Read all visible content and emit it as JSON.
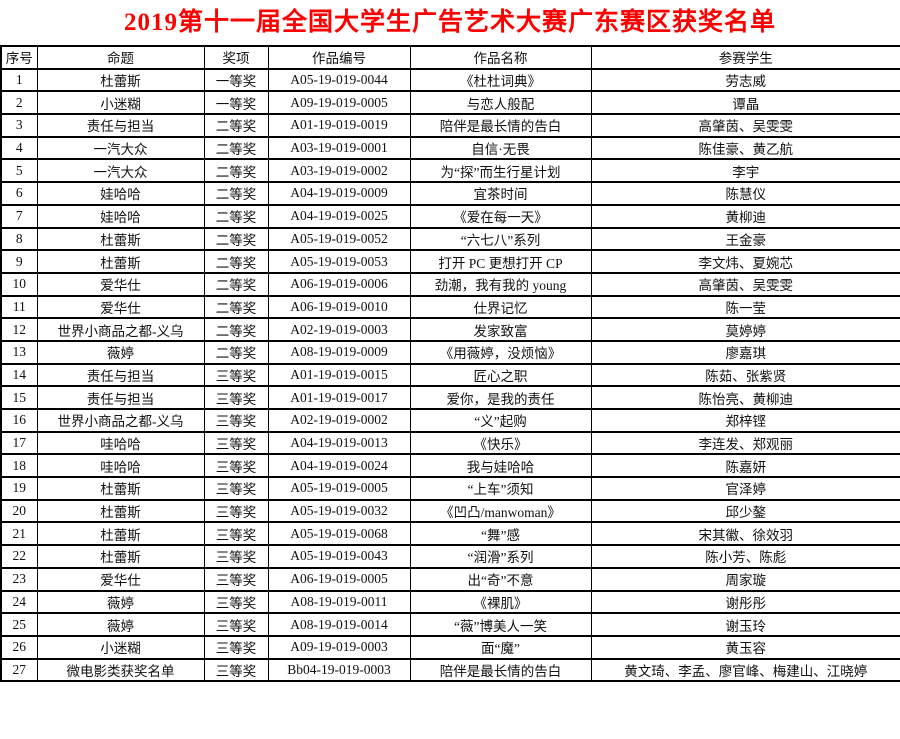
{
  "title": "2019第十一届全国大学生广告艺术大赛广东赛区获奖名单",
  "title_color": "#ff0000",
  "border_color": "#000000",
  "table": {
    "headers": [
      "序号",
      "命题",
      "奖项",
      "作品编号",
      "作品名称",
      "参赛学生"
    ],
    "rows": [
      [
        "1",
        "杜蕾斯",
        "一等奖",
        "A05-19-019-0044",
        "《杜杜词典》",
        "劳志威"
      ],
      [
        "2",
        "小迷糊",
        "一等奖",
        "A09-19-019-0005",
        "与恋人般配",
        "谭晶"
      ],
      [
        "3",
        "责任与担当",
        "二等奖",
        "A01-19-019-0019",
        "陪伴是最长情的告白",
        "高肇茵、吴雯雯"
      ],
      [
        "4",
        "一汽大众",
        "二等奖",
        "A03-19-019-0001",
        "自信·无畏",
        "陈佳豪、黄乙航"
      ],
      [
        "5",
        "一汽大众",
        "二等奖",
        "A03-19-019-0002",
        "为“探”而生行星计划",
        "李宇"
      ],
      [
        "6",
        "娃哈哈",
        "二等奖",
        "A04-19-019-0009",
        "宜茶时间",
        "陈慧仪"
      ],
      [
        "7",
        "娃哈哈",
        "二等奖",
        "A04-19-019-0025",
        "《爱在每一天》",
        "黄柳迪"
      ],
      [
        "8",
        "杜蕾斯",
        "二等奖",
        "A05-19-019-0052",
        "“六七八”系列",
        "王金豪"
      ],
      [
        "9",
        "杜蕾斯",
        "二等奖",
        "A05-19-019-0053",
        "打开 PC 更想打开 CP",
        "李文炜、夏婉芯"
      ],
      [
        "10",
        "爱华仕",
        "二等奖",
        "A06-19-019-0006",
        "劲潮，我有我的 young",
        "高肇茵、吴雯雯"
      ],
      [
        "11",
        "爱华仕",
        "二等奖",
        "A06-19-019-0010",
        "仕界记忆",
        "陈一莹"
      ],
      [
        "12",
        "世界小商品之都-义乌",
        "二等奖",
        "A02-19-019-0003",
        "发家致富",
        "莫婷婷"
      ],
      [
        "13",
        "薇婷",
        "二等奖",
        "A08-19-019-0009",
        "《用薇婷，没烦恼》",
        "廖嘉琪"
      ],
      [
        "14",
        "责任与担当",
        "三等奖",
        "A01-19-019-0015",
        "匠心之职",
        "陈茹、张紫贤"
      ],
      [
        "15",
        "责任与担当",
        "三等奖",
        "A01-19-019-0017",
        "爱你，是我的责任",
        "陈怡亮、黄柳迪"
      ],
      [
        "16",
        "世界小商品之都-义乌",
        "三等奖",
        "A02-19-019-0002",
        "“义”起购",
        "郑梓铿"
      ],
      [
        "17",
        "哇哈哈",
        "三等奖",
        "A04-19-019-0013",
        "《快乐》",
        "李连发、郑观丽"
      ],
      [
        "18",
        "哇哈哈",
        "三等奖",
        "A04-19-019-0024",
        "我与娃哈哈",
        "陈嘉妍"
      ],
      [
        "19",
        "杜蕾斯",
        "三等奖",
        "A05-19-019-0005",
        "“上车”须知",
        "官泽婷"
      ],
      [
        "20",
        "杜蕾斯",
        "三等奖",
        "A05-19-019-0032",
        "《凹凸/manwoman》",
        "邱少鏊"
      ],
      [
        "21",
        "杜蕾斯",
        "三等奖",
        "A05-19-019-0068",
        "“舞”感",
        "宋其徽、徐效羽"
      ],
      [
        "22",
        "杜蕾斯",
        "三等奖",
        "A05-19-019-0043",
        "“润滑”系列",
        "陈小芳、陈彪"
      ],
      [
        "23",
        "爱华仕",
        "三等奖",
        "A06-19-019-0005",
        "出“奇”不意",
        "周家璇"
      ],
      [
        "24",
        "薇婷",
        "三等奖",
        "A08-19-019-0011",
        "《裸肌》",
        "谢彤彤"
      ],
      [
        "25",
        "薇婷",
        "三等奖",
        "A08-19-019-0014",
        "“薇”博美人一笑",
        "谢玉玲"
      ],
      [
        "26",
        "小迷糊",
        "三等奖",
        "A09-19-019-0003",
        "面“魔”",
        "黄玉容"
      ],
      [
        "27",
        "微电影类获奖名单",
        "三等奖",
        "Bb04-19-019-0003",
        "陪伴是最长情的告白",
        "黄文琦、李孟、廖官峰、梅建山、江晓婷"
      ]
    ]
  }
}
